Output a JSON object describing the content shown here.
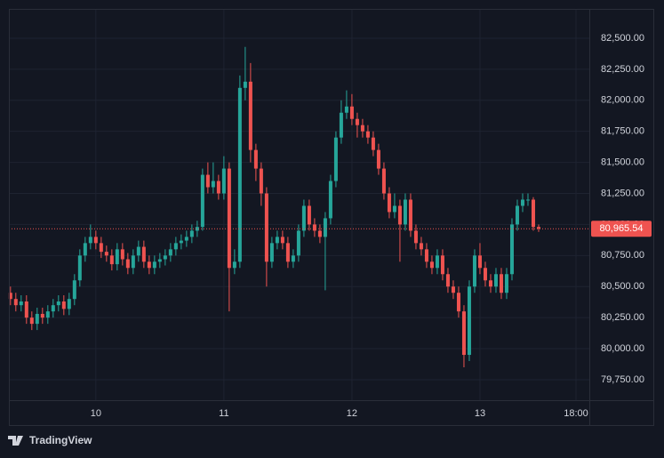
{
  "chart_data": {
    "type": "candlestick",
    "brand": "TradingView",
    "up_color": "#26a69a",
    "down_color": "#ef5350",
    "grid": true,
    "ylim": [
      79585,
      82736
    ],
    "yticks": [
      {
        "value": 79750,
        "label": "79,750.00"
      },
      {
        "value": 80000,
        "label": "80,000.00"
      },
      {
        "value": 80250,
        "label": "80,250.00"
      },
      {
        "value": 80500,
        "label": "80,500.00"
      },
      {
        "value": 80750,
        "label": "80,750.00"
      },
      {
        "value": 81000,
        "label": "81,000.00"
      },
      {
        "value": 81250,
        "label": "81,250.00"
      },
      {
        "value": 81500,
        "label": "81,500.00"
      },
      {
        "value": 81750,
        "label": "81,750.00"
      },
      {
        "value": 82000,
        "label": "82,000.00"
      },
      {
        "value": 82250,
        "label": "82,250.00"
      },
      {
        "value": 82500,
        "label": "82,500.00"
      }
    ],
    "xlim": [
      -0.3,
      108.5
    ],
    "xticks": [
      {
        "value": 16,
        "label": "10"
      },
      {
        "value": 40,
        "label": "11"
      },
      {
        "value": 64,
        "label": "12"
      },
      {
        "value": 88,
        "label": "13"
      },
      {
        "value": 106,
        "label": "18:00"
      }
    ],
    "last_price": {
      "value": 80965.54,
      "label": "80,965.54"
    },
    "open": [
      80450,
      80400,
      80350,
      80380,
      80250,
      80200,
      80280,
      80250,
      80300,
      80350,
      80380,
      80320,
      80400,
      80550,
      80750,
      80850,
      80900,
      80850,
      80780,
      80750,
      80680,
      80800,
      80720,
      80650,
      80750,
      80820,
      80700,
      80650,
      80700,
      80720,
      80750,
      80800,
      80850,
      80870,
      80900,
      80950,
      80980,
      81400,
      81300,
      81350,
      81250,
      81450,
      80650,
      80700,
      82100,
      82150,
      81600,
      81450,
      81250,
      80700,
      80850,
      80900,
      80850,
      80700,
      80750,
      80950,
      81150,
      81000,
      80950,
      80900,
      81050,
      81350,
      81700,
      81900,
      81950,
      81850,
      81800,
      81750,
      81700,
      81600,
      81450,
      81250,
      81100,
      81150,
      81000,
      81200,
      80950,
      80850,
      80800,
      80700,
      80650,
      80750,
      80600,
      80500,
      80450,
      80300,
      79950,
      80500,
      80750,
      80650,
      80550,
      80500,
      80600,
      80450,
      80600,
      81000,
      81150,
      81200,
      81200,
      80980
    ],
    "high": [
      80500,
      80450,
      80430,
      80430,
      80300,
      80330,
      80330,
      80350,
      80400,
      80430,
      80430,
      80450,
      80600,
      80800,
      80900,
      81000,
      80950,
      80900,
      80830,
      80800,
      80850,
      80850,
      80770,
      80800,
      80870,
      80870,
      80750,
      80750,
      80770,
      80800,
      80850,
      80900,
      80920,
      80950,
      81000,
      81030,
      81450,
      81500,
      81500,
      81400,
      81550,
      81500,
      80800,
      82200,
      82430,
      82300,
      81650,
      81500,
      81300,
      80900,
      80950,
      80950,
      80900,
      80800,
      81000,
      81200,
      81200,
      81050,
      81000,
      81100,
      81400,
      81750,
      82000,
      82080,
      82050,
      81900,
      81850,
      81800,
      81750,
      81650,
      81500,
      81300,
      81250,
      81200,
      81250,
      81250,
      81000,
      80900,
      80850,
      80750,
      80800,
      80800,
      80650,
      80550,
      80500,
      80350,
      80550,
      80800,
      80850,
      80700,
      80600,
      80650,
      80650,
      80650,
      81050,
      81200,
      81250,
      81250,
      81220,
      81000
    ],
    "low": [
      80350,
      80300,
      80300,
      80200,
      80150,
      80150,
      80200,
      80200,
      80250,
      80300,
      80270,
      80270,
      80350,
      80500,
      80700,
      80800,
      80800,
      80730,
      80700,
      80630,
      80630,
      80670,
      80600,
      80600,
      80700,
      80650,
      80600,
      80600,
      80650,
      80670,
      80700,
      80750,
      80800,
      80820,
      80850,
      80900,
      80950,
      81250,
      81250,
      81200,
      81200,
      80300,
      80600,
      80650,
      82000,
      81500,
      81350,
      81150,
      80500,
      80650,
      80800,
      80800,
      80650,
      80650,
      80700,
      80900,
      80950,
      80900,
      80850,
      80470,
      81000,
      81300,
      81650,
      81850,
      81800,
      81700,
      81700,
      81650,
      81550,
      81400,
      81200,
      81050,
      81050,
      80700,
      80950,
      80900,
      80800,
      80750,
      80650,
      80600,
      80600,
      80550,
      80450,
      80400,
      80250,
      79850,
      79900,
      80450,
      80600,
      80500,
      80450,
      80450,
      80400,
      80400,
      80550,
      80950,
      81100,
      81150,
      80950,
      80940
    ],
    "close": [
      80400,
      80350,
      80380,
      80250,
      80200,
      80280,
      80250,
      80300,
      80350,
      80380,
      80320,
      80400,
      80550,
      80750,
      80850,
      80900,
      80850,
      80780,
      80750,
      80680,
      80800,
      80720,
      80650,
      80750,
      80820,
      80700,
      80650,
      80700,
      80720,
      80750,
      80800,
      80850,
      80870,
      80900,
      80950,
      80980,
      81400,
      81300,
      81350,
      81250,
      81450,
      80650,
      80700,
      82100,
      82150,
      81600,
      81450,
      81250,
      80700,
      80850,
      80900,
      80850,
      80700,
      80750,
      80950,
      81150,
      81000,
      80950,
      80900,
      81050,
      81350,
      81700,
      81900,
      81950,
      81850,
      81800,
      81750,
      81700,
      81600,
      81450,
      81250,
      81100,
      81150,
      81000,
      81200,
      80950,
      80850,
      80800,
      80700,
      80650,
      80750,
      80600,
      80500,
      80450,
      80300,
      79950,
      80500,
      80750,
      80650,
      80550,
      80500,
      80600,
      80450,
      80600,
      81000,
      81150,
      81200,
      81200,
      80980,
      80965.54
    ]
  }
}
